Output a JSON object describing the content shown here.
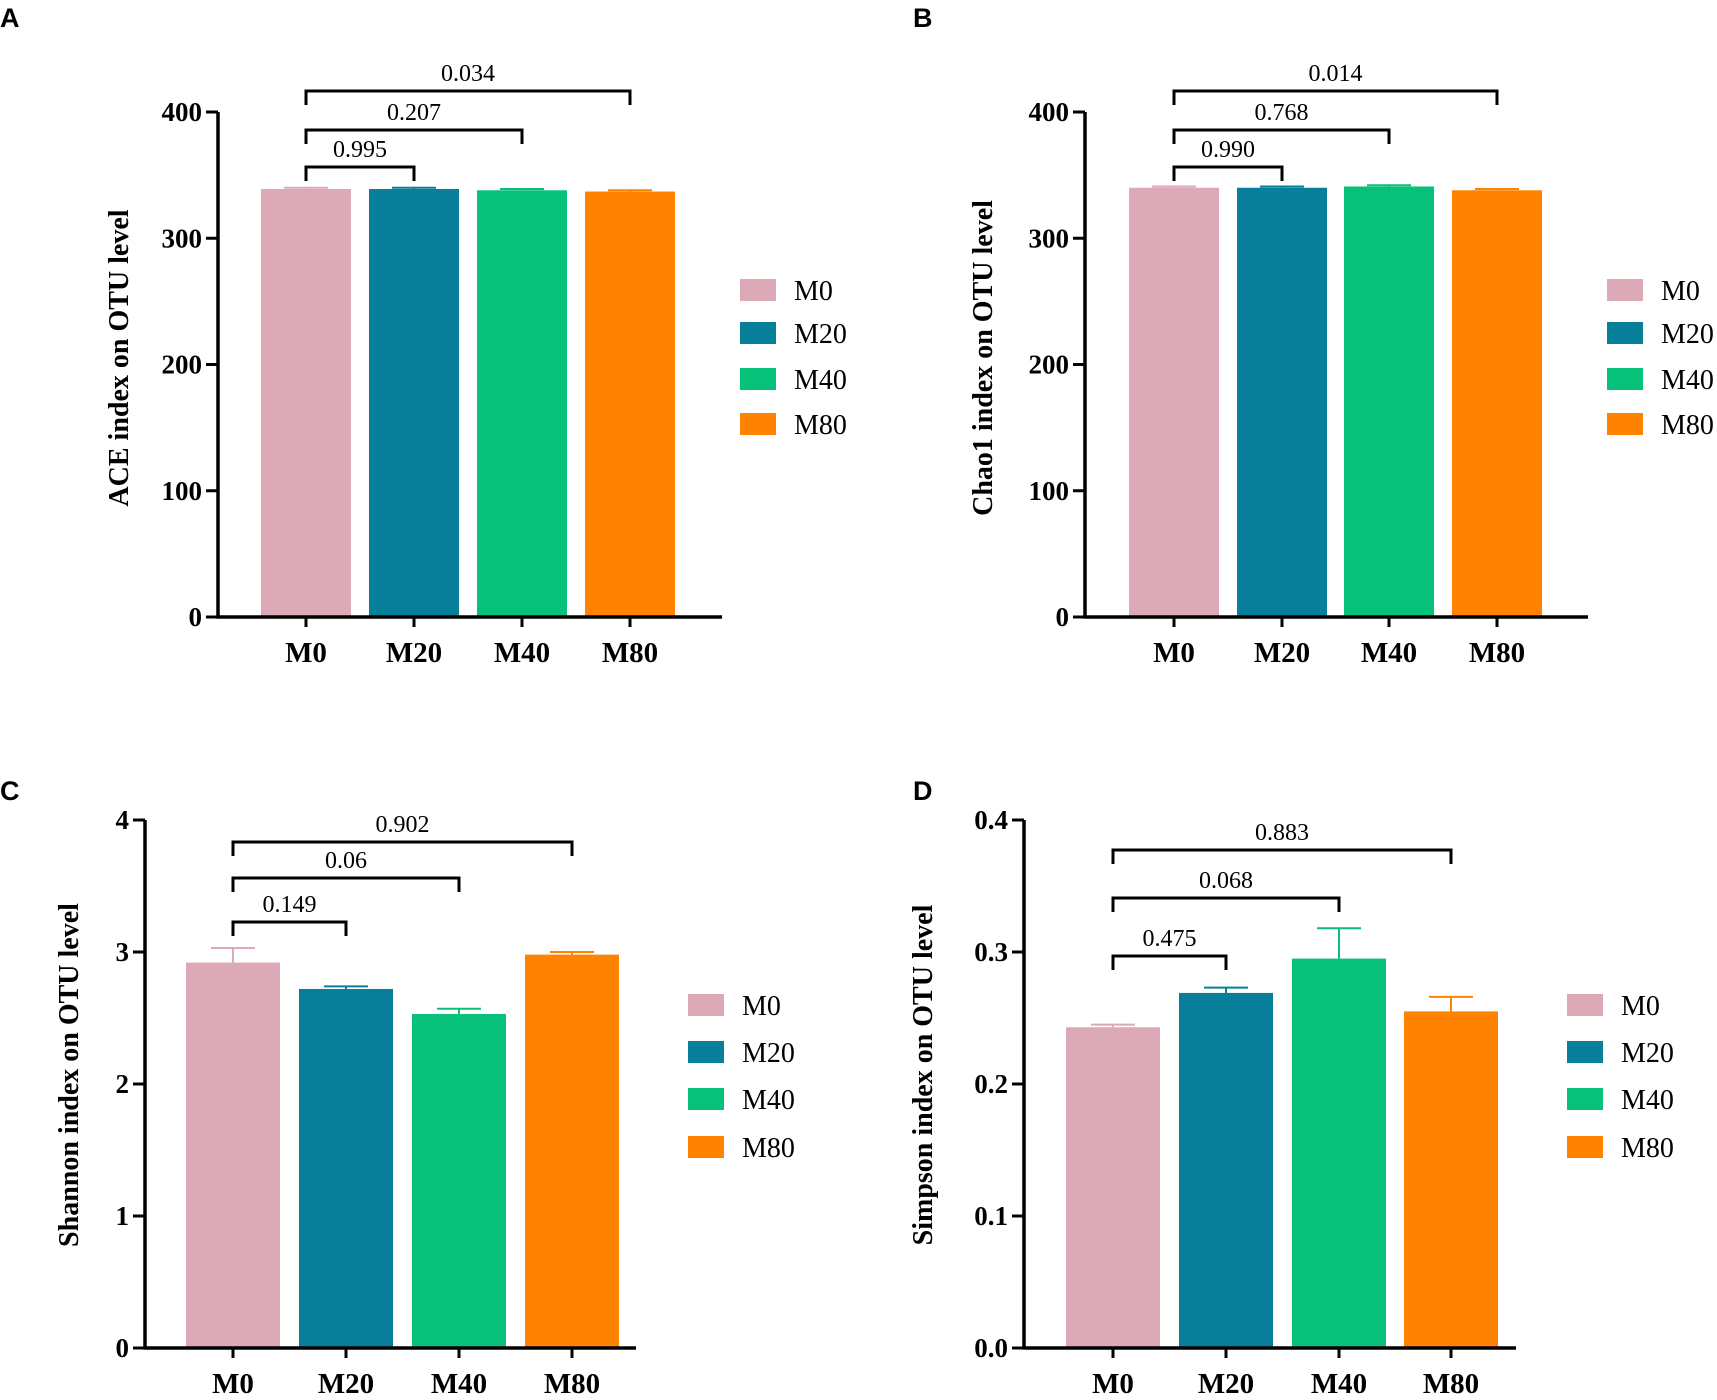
{
  "colors": {
    "M0": "#dcaab6",
    "M20": "#077f9a",
    "M40": "#07c07a",
    "M80": "#ff8200"
  },
  "chart_data": [
    {
      "panel": "A",
      "type": "bar",
      "categories": [
        "M0",
        "M20",
        "M40",
        "M80"
      ],
      "values": [
        339,
        339,
        338,
        337
      ],
      "errors": [
        1,
        1,
        1,
        1
      ],
      "ylabel": "ACE index on OTU level",
      "ylim": [
        0,
        400
      ],
      "yticks": [
        0,
        100,
        200,
        300,
        400
      ],
      "ytick_labels": [
        "0",
        "100",
        "200",
        "300",
        "400"
      ],
      "legend": [
        "M0",
        "M20",
        "M40",
        "M80"
      ],
      "legend_position": "right",
      "comparisons": [
        {
          "from": "M0",
          "to": "M20",
          "p": "0.995"
        },
        {
          "from": "M0",
          "to": "M40",
          "p": "0.207"
        },
        {
          "from": "M0",
          "to": "M80",
          "p": "0.034"
        }
      ]
    },
    {
      "panel": "B",
      "type": "bar",
      "categories": [
        "M0",
        "M20",
        "M40",
        "M80"
      ],
      "values": [
        340,
        340,
        341,
        338
      ],
      "errors": [
        1,
        1,
        1,
        1
      ],
      "ylabel": "Chao1 index on OTU level",
      "ylim": [
        0,
        400
      ],
      "yticks": [
        0,
        100,
        200,
        300,
        400
      ],
      "ytick_labels": [
        "0",
        "100",
        "200",
        "300",
        "400"
      ],
      "legend": [
        "M0",
        "M20",
        "M40",
        "M80"
      ],
      "legend_position": "right",
      "comparisons": [
        {
          "from": "M0",
          "to": "M20",
          "p": "0.990"
        },
        {
          "from": "M0",
          "to": "M40",
          "p": "0.768"
        },
        {
          "from": "M0",
          "to": "M80",
          "p": "0.014"
        }
      ]
    },
    {
      "panel": "C",
      "type": "bar",
      "categories": [
        "M0",
        "M20",
        "M40",
        "M80"
      ],
      "values": [
        2.92,
        2.72,
        2.53,
        2.98
      ],
      "errors": [
        0.11,
        0.02,
        0.04,
        0.02
      ],
      "ylabel": "Shannon index on OTU level",
      "ylim": [
        0,
        4
      ],
      "yticks": [
        0,
        1,
        2,
        3,
        4
      ],
      "ytick_labels": [
        "0",
        "1",
        "2",
        "3",
        "4"
      ],
      "legend": [
        "M0",
        "M20",
        "M40",
        "M80"
      ],
      "legend_position": "right",
      "comparisons": [
        {
          "from": "M0",
          "to": "M20",
          "p": "0.149"
        },
        {
          "from": "M0",
          "to": "M40",
          "p": "0.06"
        },
        {
          "from": "M0",
          "to": "M80",
          "p": "0.902"
        }
      ]
    },
    {
      "panel": "D",
      "type": "bar",
      "categories": [
        "M0",
        "M20",
        "M40",
        "M80"
      ],
      "values": [
        0.243,
        0.269,
        0.295,
        0.255
      ],
      "errors": [
        0.002,
        0.004,
        0.023,
        0.011
      ],
      "ylabel": "Simpson index on OTU level",
      "ylim": [
        0,
        0.4
      ],
      "yticks": [
        0,
        0.1,
        0.2,
        0.3,
        0.4
      ],
      "ytick_labels": [
        "0.0",
        "0.1",
        "0.2",
        "0.3",
        "0.4"
      ],
      "legend": [
        "M0",
        "M20",
        "M40",
        "M80"
      ],
      "legend_position": "right",
      "comparisons": [
        {
          "from": "M0",
          "to": "M20",
          "p": "0.475"
        },
        {
          "from": "M0",
          "to": "M40",
          "p": "0.068"
        },
        {
          "from": "M0",
          "to": "M80",
          "p": "0.883"
        }
      ]
    }
  ]
}
